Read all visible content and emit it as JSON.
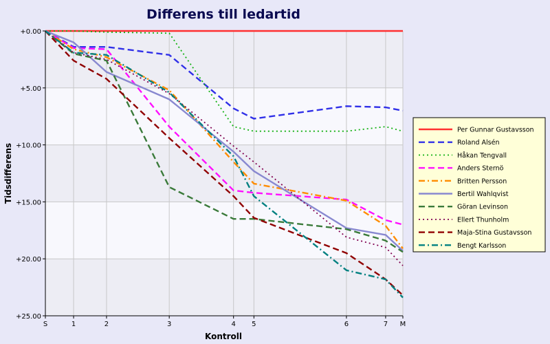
{
  "chart_data": {
    "type": "line",
    "title": "Differens till ledartid",
    "xlabel": "Kontroll",
    "ylabel": "Tidsdifferens",
    "x_ticks": [
      {
        "label": "S",
        "pos": 0
      },
      {
        "label": "1",
        "pos": 1
      },
      {
        "label": "2",
        "pos": 2
      },
      {
        "label": "3",
        "pos": 3
      },
      {
        "label": "4",
        "pos": 4
      },
      {
        "label": "5",
        "pos": 5
      },
      {
        "label": "6",
        "pos": 6
      },
      {
        "label": "7",
        "pos": 7
      },
      {
        "label": "M",
        "pos": 8
      }
    ],
    "x_positions": [
      0,
      0.9,
      1.95,
      3.95,
      6.0,
      6.65,
      9.6,
      10.85,
      11.4
    ],
    "xlim": [
      0,
      11.4
    ],
    "y_ticks": [
      "+0.00",
      "+5.00",
      "+10.00",
      "+15.00",
      "+20.00",
      "+25.00"
    ],
    "y_tick_values": [
      0,
      5,
      10,
      15,
      20,
      25
    ],
    "ylim": [
      0,
      25
    ],
    "y_inverted": true,
    "grid": true,
    "legend_position": "right",
    "series": [
      {
        "name": "Per Gunnar Gustavsson",
        "color": "#ff3030",
        "dash": "solid",
        "values": [
          0,
          0,
          0,
          0,
          0,
          0,
          0,
          0,
          0
        ]
      },
      {
        "name": "Roland Alsén",
        "color": "#3030e8",
        "dash": "dash",
        "values": [
          0,
          1.4,
          1.4,
          2.1,
          6.8,
          7.7,
          6.6,
          6.7,
          7.0
        ]
      },
      {
        "name": "Håkan Tengvall",
        "color": "#10b010",
        "dash": "dot",
        "values": [
          0,
          0,
          0.1,
          0.2,
          8.4,
          8.8,
          8.8,
          8.4,
          8.8
        ]
      },
      {
        "name": "Anders Sternö",
        "color": "#ff10ff",
        "dash": "dash",
        "values": [
          0,
          1.5,
          1.6,
          8.4,
          14.0,
          14.2,
          14.8,
          16.6,
          17.0
        ]
      },
      {
        "name": "Britten Persson",
        "color": "#ff8c00",
        "dash": "dashdot",
        "values": [
          0,
          1.6,
          2.3,
          5.2,
          11.5,
          13.4,
          14.9,
          17.1,
          19.1
        ]
      },
      {
        "name": "Bertil Wahlqvist",
        "color": "#8888d0",
        "dash": "solid",
        "values": [
          0,
          1.0,
          3.6,
          6.0,
          10.6,
          12.3,
          17.3,
          17.9,
          19.3
        ]
      },
      {
        "name": "Göran Levinson",
        "color": "#3a7a3a",
        "dash": "dash",
        "values": [
          0,
          2.0,
          2.6,
          13.7,
          16.5,
          16.5,
          17.4,
          18.4,
          19.4
        ]
      },
      {
        "name": "Ellert Thunholm",
        "color": "#800050",
        "dash": "dot",
        "values": [
          0,
          1.9,
          2.5,
          5.5,
          10.1,
          11.5,
          18.1,
          19.0,
          20.6
        ]
      },
      {
        "name": "Maja-Stina Gustavsson",
        "color": "#900000",
        "dash": "dash",
        "values": [
          0,
          2.6,
          4.2,
          9.4,
          14.5,
          16.4,
          19.5,
          21.8,
          23.2
        ]
      },
      {
        "name": "Bengt Karlsson",
        "color": "#008080",
        "dash": "dashdot",
        "values": [
          0,
          1.9,
          2.1,
          5.4,
          11.0,
          14.5,
          21.0,
          21.8,
          23.4
        ]
      }
    ]
  }
}
